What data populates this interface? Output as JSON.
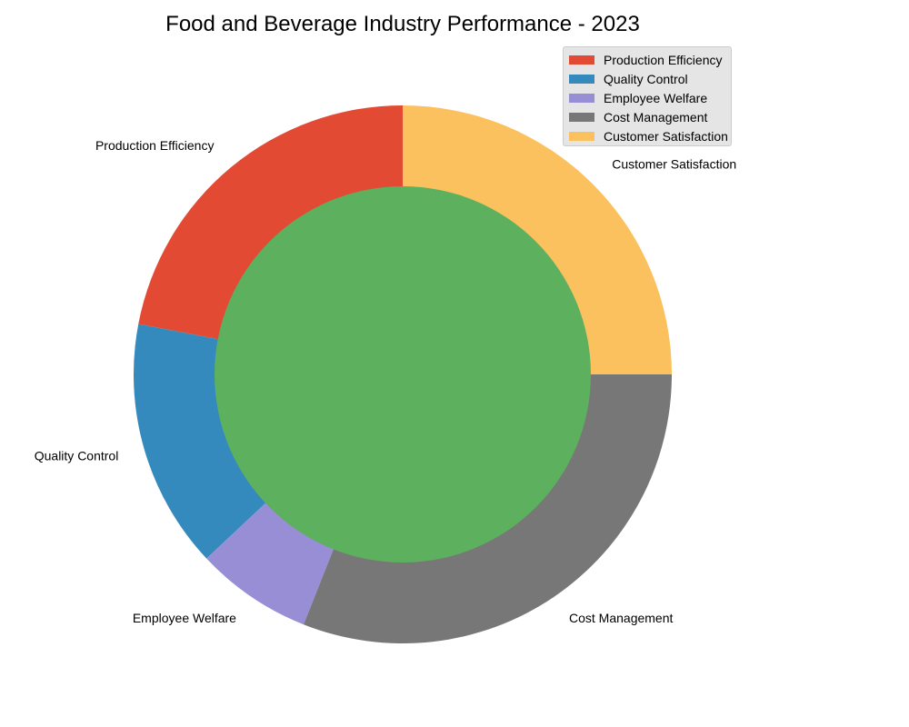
{
  "chart_data": {
    "type": "pie",
    "title": "Food and Beverage Industry Performance - 2023",
    "categories": [
      "Production Efficiency",
      "Quality Control",
      "Employee Welfare",
      "Cost Management",
      "Customer Satisfaction"
    ],
    "values": [
      22,
      15,
      7,
      31,
      25
    ],
    "colors": [
      "#e24a33",
      "#348abd",
      "#988ed5",
      "#777777",
      "#fbc15e"
    ],
    "center_color": "#5db05d",
    "start_angle_deg": 90,
    "direction": "counterclockwise",
    "donut": true,
    "legend_position": "top-right"
  }
}
